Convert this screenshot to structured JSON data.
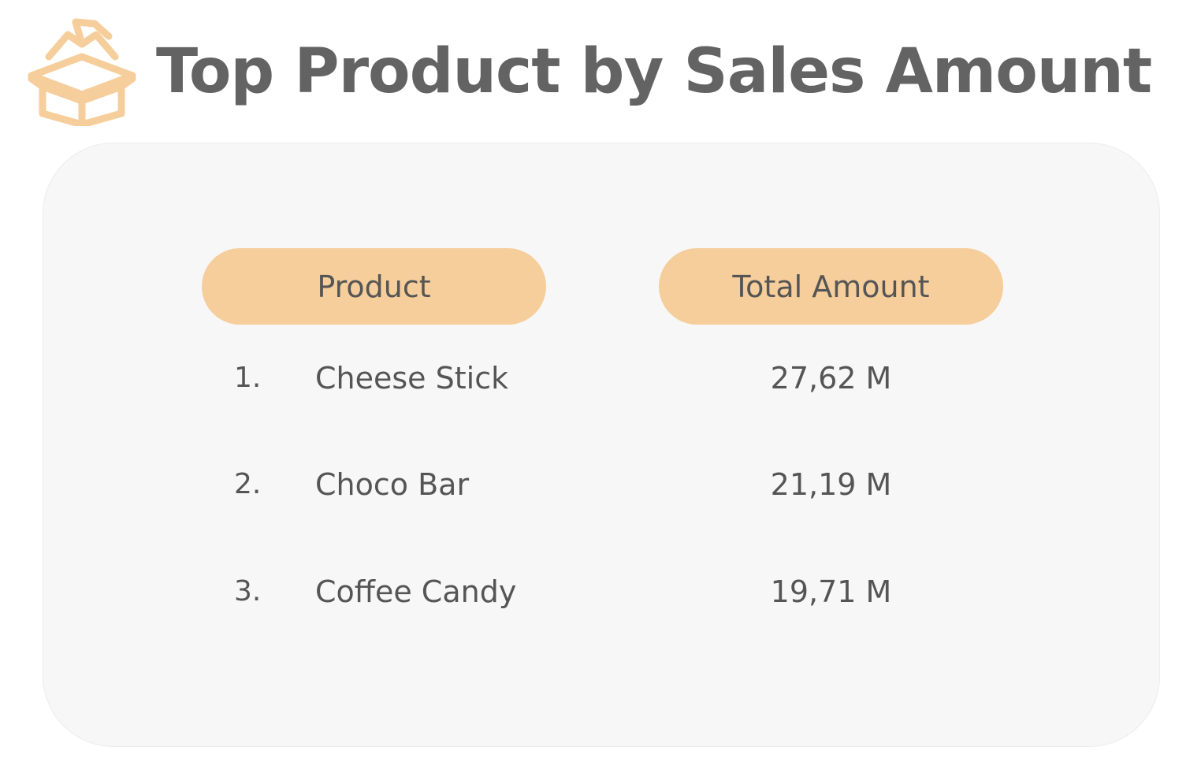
{
  "title": "Top Product by Sales Amount",
  "icon": "package-box-icon",
  "colors": {
    "accent": "#f5ce9b",
    "title": "#636363",
    "text": "#555555",
    "panel": "#f7f7f7"
  },
  "table": {
    "headers": {
      "product": "Product",
      "amount": "Total Amount"
    },
    "rows": [
      {
        "rank": "1.",
        "product": "Cheese Stick",
        "amount": "27,62 M"
      },
      {
        "rank": "2.",
        "product": "Choco Bar",
        "amount": "21,19 M"
      },
      {
        "rank": "3.",
        "product": "Coffee Candy",
        "amount": "19,71 M"
      }
    ]
  }
}
